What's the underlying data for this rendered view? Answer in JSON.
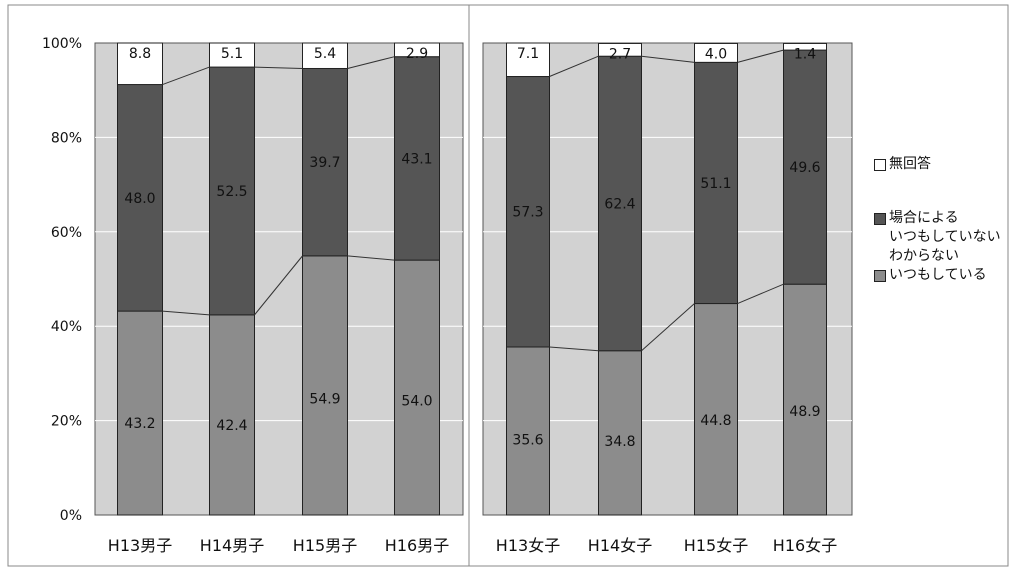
{
  "chart_data": {
    "type": "bar",
    "stacked": true,
    "percent": true,
    "y_ticks": [
      "0%",
      "20%",
      "40%",
      "60%",
      "80%",
      "100%"
    ],
    "ylim": [
      0,
      100
    ],
    "grid": true,
    "panels": [
      {
        "categories": [
          "H13男子",
          "H14男子",
          "H15男子",
          "H16男子"
        ],
        "series": [
          {
            "name": "いつもしている",
            "values": [
              43.2,
              42.4,
              54.9,
              54.0
            ]
          },
          {
            "name": "場合による\nいつもしていない\nわからない",
            "values": [
              48.0,
              52.5,
              39.7,
              43.1
            ]
          },
          {
            "name": "無回答",
            "values": [
              8.8,
              5.1,
              5.4,
              2.9
            ]
          }
        ]
      },
      {
        "categories": [
          "H13女子",
          "H14女子",
          "H15女子",
          "H16女子"
        ],
        "series": [
          {
            "name": "いつもしている",
            "values": [
              35.6,
              34.8,
              44.8,
              48.9
            ]
          },
          {
            "name": "場合による\nいつもしていない\nわからない",
            "values": [
              57.3,
              62.4,
              51.1,
              49.6
            ]
          },
          {
            "name": "無回答",
            "values": [
              7.1,
              2.7,
              4.0,
              1.4
            ]
          }
        ]
      }
    ],
    "legend": {
      "position": "right",
      "items": [
        {
          "label": "無回答",
          "color": "#ffffff"
        },
        {
          "label": "場合による\nいつもしていない\nわからない",
          "color": "#555555"
        },
        {
          "label": "いつもしている",
          "color": "#8c8c8c"
        }
      ]
    },
    "colors": {
      "plot_bg": "#d2d2d2",
      "always": "#8c8c8c",
      "sometimes": "#555555",
      "no_answer": "#ffffff",
      "grid": "#ffffff"
    }
  }
}
